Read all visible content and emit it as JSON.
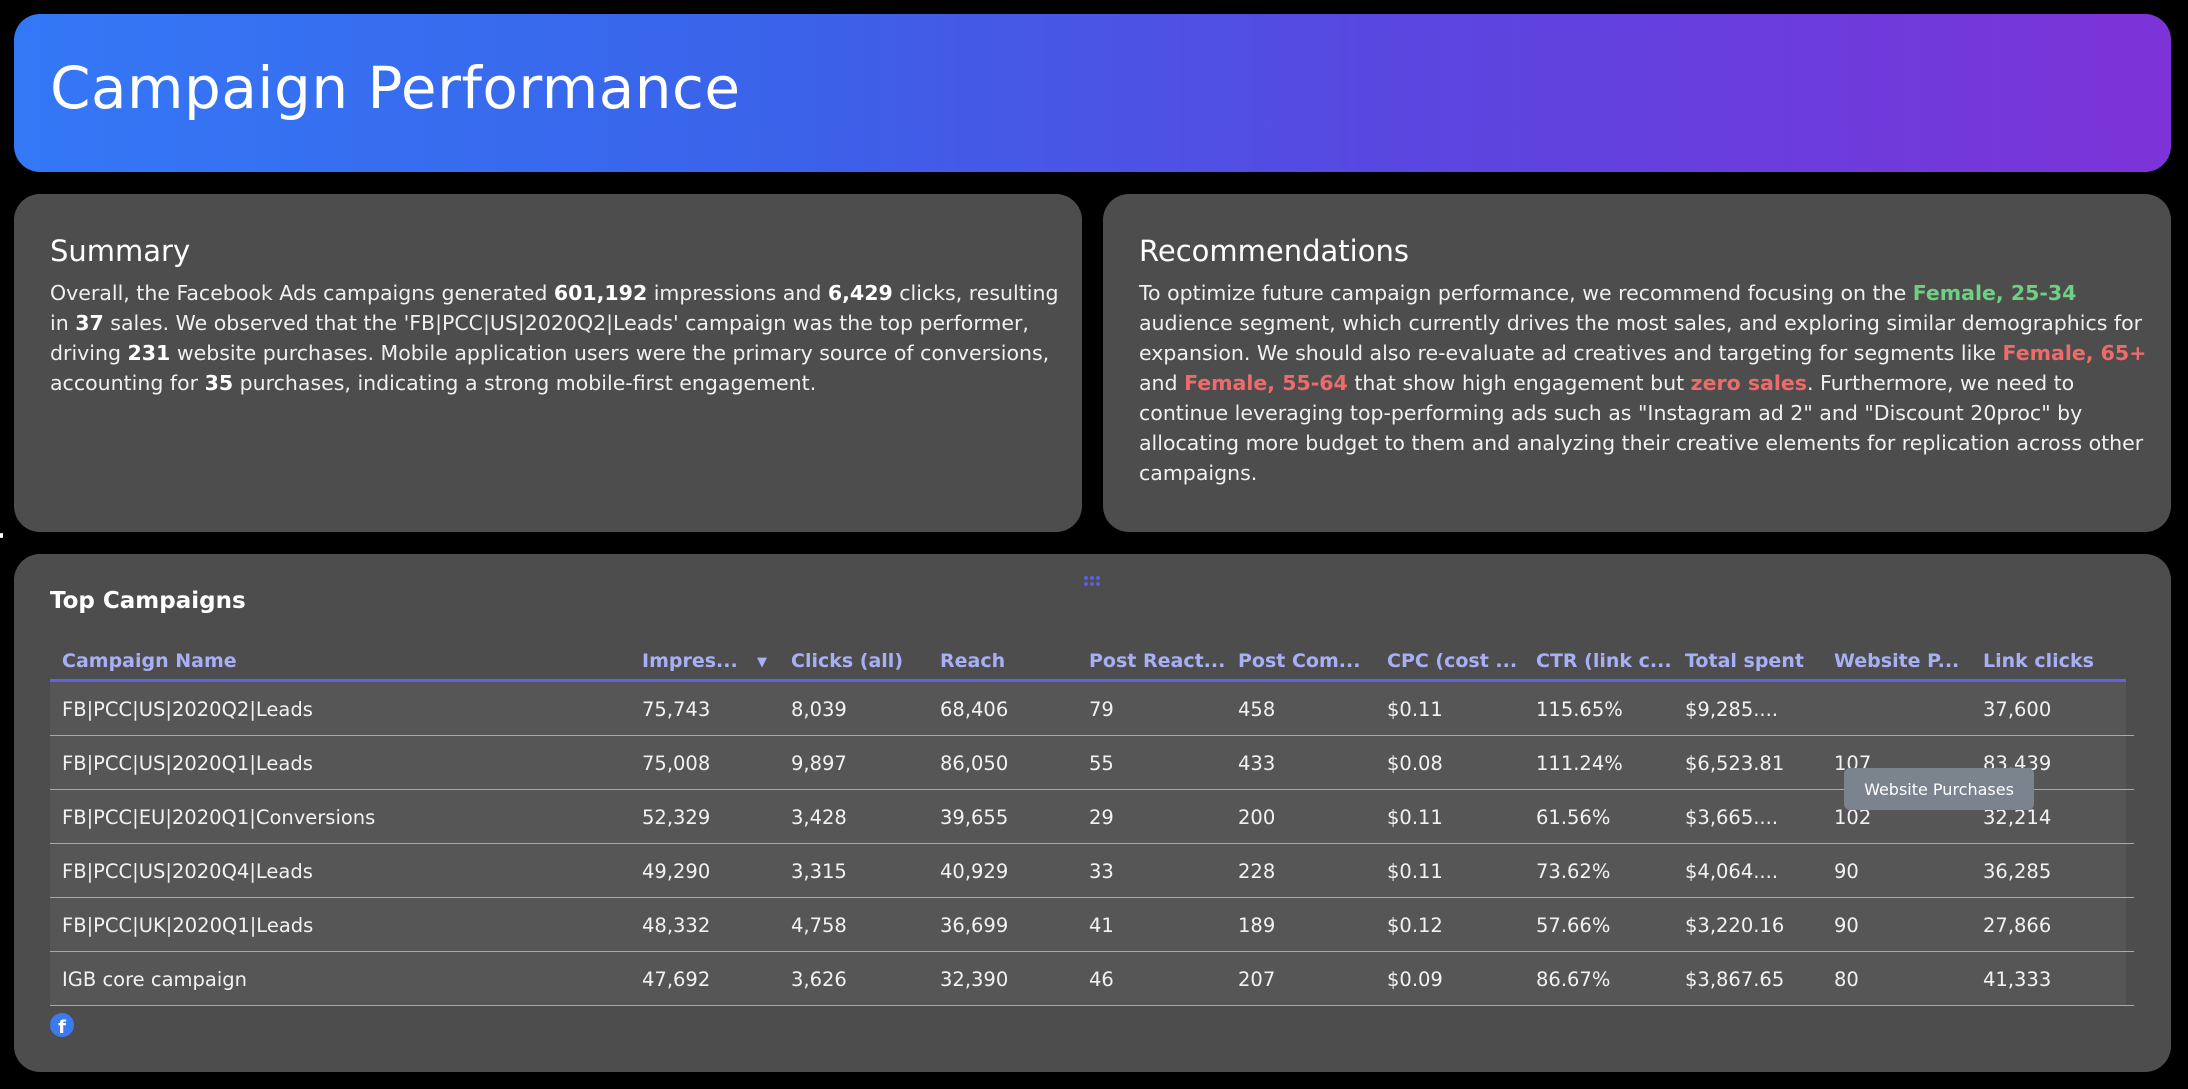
{
  "header": {
    "title": "Campaign Performance"
  },
  "summary": {
    "title": "Summary",
    "segments": [
      {
        "t": "Overall, the Facebook Ads campaigns generated "
      },
      {
        "t": "601,192",
        "b": true
      },
      {
        "t": " impressions and "
      },
      {
        "t": "6,429",
        "b": true
      },
      {
        "t": " clicks, resulting in "
      },
      {
        "t": "37",
        "b": true
      },
      {
        "t": " sales. We observed that the 'FB|PCC|US|2020Q2|Leads' campaign was the top performer, driving "
      },
      {
        "t": "231",
        "b": true
      },
      {
        "t": " website purchases. Mobile application users were the primary source of conversions, accounting for "
      },
      {
        "t": "35",
        "b": true
      },
      {
        "t": " purchases, indicating a strong mobile-first engagement."
      }
    ]
  },
  "recommendations": {
    "title": "Recommendations",
    "segments": [
      {
        "t": "To optimize future campaign performance, we recommend focusing on the "
      },
      {
        "t": "Female, 25-34",
        "c": "green"
      },
      {
        "t": " audience segment, which currently drives the most sales, and exploring similar demographics for expansion. We should also re-evaluate ad creatives and targeting for segments like "
      },
      {
        "t": "Female, 65+",
        "c": "red"
      },
      {
        "t": " and "
      },
      {
        "t": "Female, 55-64",
        "c": "red"
      },
      {
        "t": " that show high engagement but "
      },
      {
        "t": "zero sales",
        "c": "red"
      },
      {
        "t": ". Furthermore, we need to continue leveraging top-performing ads such as \"Instagram ad 2\" and \"Discount 20proc\" by allocating more budget to them and analyzing their creative elements for replication across other campaigns."
      }
    ]
  },
  "colors": {
    "header_gradient_start": "#3478f6",
    "header_gradient_end": "#7d33d8",
    "card_bg": "#4d4d4d",
    "column_header": "#a8b0f5",
    "header_rule": "#5d62e6",
    "highlight_green": "#6fcf83",
    "highlight_red": "#ee6b6b"
  },
  "table": {
    "title": "Top Campaigns",
    "sorted_column": "Impres...",
    "sort_direction": "descending",
    "columns": [
      "Campaign Name",
      "Impres...",
      "Clicks (all)",
      "Reach",
      "Post React...",
      "Post Com...",
      "CPC (cost ...",
      "CTR (link c...",
      "Total spent",
      "Website P...",
      "Link clicks"
    ],
    "rows": [
      [
        "FB|PCC|US|2020Q2|Leads",
        "75,743",
        "8,039",
        "68,406",
        "79",
        "458",
        "$0.11",
        "115.65%",
        "$9,285....",
        "",
        "37,600"
      ],
      [
        "FB|PCC|US|2020Q1|Leads",
        "75,008",
        "9,897",
        "86,050",
        "55",
        "433",
        "$0.08",
        "111.24%",
        "$6,523.81",
        "107",
        "83,439"
      ],
      [
        "FB|PCC|EU|2020Q1|Conversions",
        "52,329",
        "3,428",
        "39,655",
        "29",
        "200",
        "$0.11",
        "61.56%",
        "$3,665....",
        "102",
        "32,214"
      ],
      [
        "FB|PCC|US|2020Q4|Leads",
        "49,290",
        "3,315",
        "40,929",
        "33",
        "228",
        "$0.11",
        "73.62%",
        "$4,064....",
        "90",
        "36,285"
      ],
      [
        "FB|PCC|UK|2020Q1|Leads",
        "48,332",
        "4,758",
        "36,699",
        "41",
        "189",
        "$0.12",
        "57.66%",
        "$3,220.16",
        "90",
        "27,866"
      ],
      [
        "IGB core campaign",
        "47,692",
        "3,626",
        "32,390",
        "46",
        "207",
        "$0.09",
        "86.67%",
        "$3,867.65",
        "80",
        "41,333"
      ]
    ],
    "tooltip": "Website Purchases",
    "sort_icon": "▼",
    "source_icon": "f"
  }
}
